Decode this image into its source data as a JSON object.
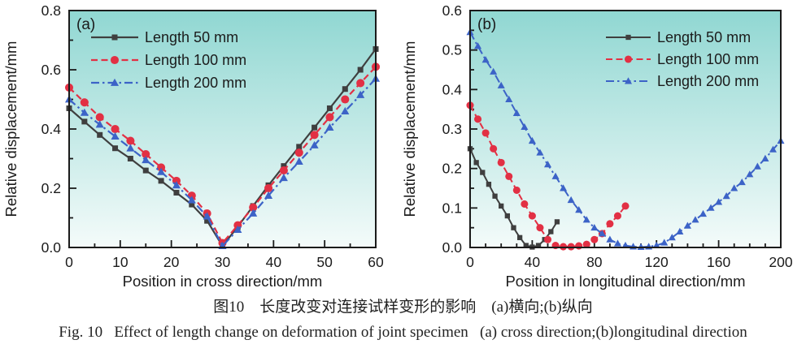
{
  "figure": {
    "caption_cn": "图10　长度改变对连接试样变形的影响　(a)横向;(b)纵向",
    "caption_en": "Fig. 10   Effect of length change on deformation of joint specimen   (a) cross direction;(b)longitudinal direction"
  },
  "colors": {
    "plot_bg_top": "#90d7d2",
    "plot_bg_bottom": "#f4fbfa",
    "axis": "#1b1b1b",
    "series_50mm": "#3f3f3f",
    "series_100mm": "#e23044",
    "series_200mm": "#3c63c7"
  },
  "chart_data": [
    {
      "type": "line",
      "panel_label": "(a)",
      "xlabel": "Position in cross direction/mm",
      "ylabel": "Relative displacement/mm",
      "xlim": [
        0,
        60
      ],
      "ylim": [
        0,
        0.8
      ],
      "x_major_ticks": [
        0,
        10,
        20,
        30,
        40,
        50,
        60
      ],
      "x_tick_labels": [
        "0",
        "10",
        "20",
        "30",
        "40",
        "50",
        "60"
      ],
      "x_minor_step": 5,
      "y_major_ticks": [
        0,
        0.2,
        0.4,
        0.6,
        0.8
      ],
      "y_tick_labels": [
        "0.0",
        "0.2",
        "0.4",
        "0.6",
        "0.8"
      ],
      "y_minor_step": 0.1,
      "legend_position": "top-left",
      "grid": false,
      "series": [
        {
          "id": "length-50mm",
          "name": "Length 50 mm",
          "marker": "square",
          "line_style": "solid",
          "color_key": "series_50mm",
          "x": [
            0,
            3,
            6,
            9,
            12,
            15,
            18,
            21,
            24,
            27,
            30,
            33,
            36,
            39,
            42,
            45,
            48,
            51,
            54,
            57,
            60
          ],
          "y": [
            0.47,
            0.425,
            0.38,
            0.335,
            0.3,
            0.26,
            0.225,
            0.185,
            0.145,
            0.09,
            0.005,
            0.07,
            0.14,
            0.21,
            0.275,
            0.34,
            0.405,
            0.47,
            0.535,
            0.6,
            0.67
          ]
        },
        {
          "id": "length-100mm",
          "name": "Length 100 mm",
          "marker": "circle",
          "line_style": "dashed",
          "color_key": "series_100mm",
          "x": [
            0,
            3,
            6,
            9,
            12,
            15,
            18,
            21,
            24,
            27,
            30,
            33,
            36,
            39,
            42,
            45,
            48,
            51,
            54,
            57,
            60
          ],
          "y": [
            0.54,
            0.49,
            0.44,
            0.4,
            0.36,
            0.315,
            0.27,
            0.225,
            0.175,
            0.115,
            0.015,
            0.075,
            0.135,
            0.2,
            0.26,
            0.32,
            0.38,
            0.44,
            0.5,
            0.555,
            0.61
          ]
        },
        {
          "id": "length-200mm",
          "name": "Length 200 mm",
          "marker": "triangle",
          "line_style": "dashdot",
          "color_key": "series_200mm",
          "x": [
            0,
            3,
            6,
            9,
            12,
            15,
            18,
            21,
            24,
            27,
            30,
            33,
            36,
            39,
            42,
            45,
            48,
            51,
            54,
            57,
            60
          ],
          "y": [
            0.5,
            0.455,
            0.415,
            0.375,
            0.335,
            0.295,
            0.255,
            0.21,
            0.16,
            0.105,
            0.005,
            0.06,
            0.115,
            0.175,
            0.235,
            0.29,
            0.345,
            0.405,
            0.46,
            0.515,
            0.57
          ]
        }
      ]
    },
    {
      "type": "line",
      "panel_label": "(b)",
      "xlabel": "Position in longitudinal direction/mm",
      "ylabel": "Relative displacement/mm",
      "xlim": [
        0,
        200
      ],
      "ylim": [
        0,
        0.6
      ],
      "x_major_ticks": [
        0,
        40,
        80,
        120,
        160,
        200
      ],
      "x_tick_labels": [
        "0",
        "40",
        "80",
        "120",
        "160",
        "200"
      ],
      "x_minor_step": 10,
      "y_major_ticks": [
        0,
        0.1,
        0.2,
        0.3,
        0.4,
        0.5,
        0.6
      ],
      "y_tick_labels": [
        "0.0",
        "0.1",
        "0.2",
        "0.3",
        "0.4",
        "0.5",
        "0.6"
      ],
      "y_minor_step": 0.05,
      "legend_position": "top-right",
      "grid": false,
      "series": [
        {
          "id": "length-50mm",
          "name": "Length 50 mm",
          "marker": "square",
          "line_style": "solid",
          "color_key": "series_50mm",
          "x": [
            0,
            4,
            8,
            12,
            16,
            20,
            24,
            28,
            32,
            36,
            40,
            44,
            48,
            52,
            56
          ],
          "y": [
            0.25,
            0.215,
            0.19,
            0.16,
            0.13,
            0.105,
            0.08,
            0.05,
            0.025,
            0.005,
            0.001,
            0.005,
            0.02,
            0.04,
            0.065
          ]
        },
        {
          "id": "length-100mm",
          "name": "Length 100 mm",
          "marker": "circle",
          "line_style": "dashed",
          "color_key": "series_100mm",
          "x": [
            0,
            5,
            10,
            15,
            20,
            25,
            30,
            35,
            40,
            45,
            50,
            55,
            60,
            65,
            70,
            75,
            80,
            85,
            90,
            95,
            100
          ],
          "y": [
            0.36,
            0.325,
            0.29,
            0.25,
            0.215,
            0.18,
            0.145,
            0.11,
            0.08,
            0.05,
            0.02,
            0.005,
            0.002,
            0.002,
            0.004,
            0.008,
            0.02,
            0.035,
            0.06,
            0.08,
            0.105
          ]
        },
        {
          "id": "length-200mm",
          "name": "Length 200 mm",
          "marker": "triangle",
          "line_style": "dashdot",
          "color_key": "series_200mm",
          "x": [
            0,
            5,
            10,
            15,
            20,
            25,
            30,
            35,
            40,
            45,
            50,
            55,
            60,
            65,
            70,
            75,
            80,
            85,
            90,
            95,
            100,
            105,
            110,
            115,
            120,
            125,
            130,
            135,
            140,
            145,
            150,
            155,
            160,
            165,
            170,
            175,
            180,
            185,
            190,
            195,
            200
          ],
          "y": [
            0.545,
            0.51,
            0.475,
            0.445,
            0.41,
            0.375,
            0.34,
            0.305,
            0.27,
            0.24,
            0.21,
            0.18,
            0.15,
            0.12,
            0.095,
            0.07,
            0.05,
            0.035,
            0.02,
            0.01,
            0.005,
            0.002,
            0.001,
            0.002,
            0.005,
            0.012,
            0.025,
            0.04,
            0.055,
            0.07,
            0.085,
            0.1,
            0.115,
            0.13,
            0.15,
            0.165,
            0.185,
            0.205,
            0.225,
            0.248,
            0.27
          ]
        }
      ]
    }
  ]
}
